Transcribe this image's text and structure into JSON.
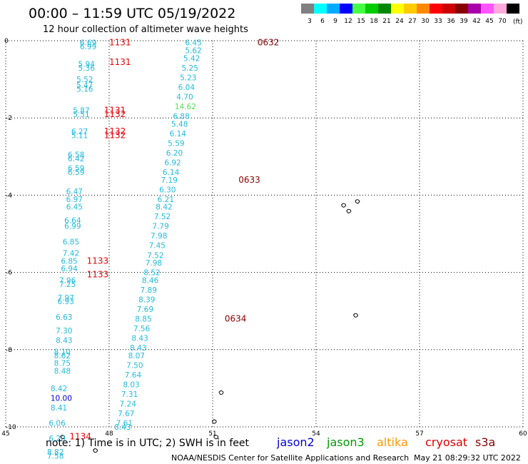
{
  "header": {
    "title": "00:00 – 11:59 UTC 05/19/2022",
    "subtitle": "12 hour collection of altimeter wave heights"
  },
  "legend": {
    "unit": "(ft)",
    "bins": [
      {
        "label": "3",
        "color": "#808080"
      },
      {
        "label": "6",
        "color": "#00ffff"
      },
      {
        "label": "9",
        "color": "#00aaff"
      },
      {
        "label": "12",
        "color": "#0000ff"
      },
      {
        "label": "15",
        "color": "#44ff44"
      },
      {
        "label": "18",
        "color": "#00cc00"
      },
      {
        "label": "21",
        "color": "#008800"
      },
      {
        "label": "24",
        "color": "#ffff00"
      },
      {
        "label": "27",
        "color": "#ffcc00"
      },
      {
        "label": "30",
        "color": "#ff8800"
      },
      {
        "label": "33",
        "color": "#ff0000"
      },
      {
        "label": "36",
        "color": "#cc0000"
      },
      {
        "label": "39",
        "color": "#880000"
      },
      {
        "label": "42",
        "color": "#aa00aa"
      },
      {
        "label": "45",
        "color": "#ff55ff"
      },
      {
        "label": "70",
        "color": "#ffaadd"
      },
      {
        "label": "",
        "color": "#000000"
      }
    ]
  },
  "footer": {
    "note": "note: 1) Time is in UTC; 2) SWH is in feet",
    "satellites": [
      {
        "name": "jason2",
        "color": "#0000dd"
      },
      {
        "name": "jason3",
        "color": "#009900"
      },
      {
        "name": "altika",
        "color": "#ff9900"
      },
      {
        "name": "cryosat",
        "color": "#dd0000"
      },
      {
        "name": "s3a",
        "color": "#880000"
      }
    ],
    "credit": "NOAA/NESDIS Center for Satellite Applications and Research",
    "generated": "May 21 08:29:32 UTC 2022"
  },
  "chart_data": {
    "type": "scatter",
    "title": "00:00 – 11:59 UTC 05/19/2022",
    "xlim": [
      45,
      60
    ],
    "ylim": [
      -10,
      0
    ],
    "x_ticks": [
      "45",
      "48",
      "51",
      "54",
      "57",
      "60"
    ],
    "y_ticks": [
      "0",
      "-2",
      "-4",
      "-6",
      "-8",
      "-10"
    ],
    "grid": true,
    "tracks": [
      {
        "color": "#22bbdd",
        "points": [
          {
            "x": 50.2,
            "y": -0.05,
            "v": "6.45"
          },
          {
            "x": 50.2,
            "y": -0.25,
            "v": "5.62"
          },
          {
            "x": 50.15,
            "y": -0.45,
            "v": "5.42"
          },
          {
            "x": 50.1,
            "y": -0.7,
            "v": "5.25"
          },
          {
            "x": 50.05,
            "y": -0.95,
            "v": "5.23"
          },
          {
            "x": 50.0,
            "y": -1.2,
            "v": "6.04"
          },
          {
            "x": 49.95,
            "y": -1.45,
            "v": "4.70"
          },
          {
            "x": 49.9,
            "y": -1.7,
            "v": "14.62",
            "color": "#55dd55"
          },
          {
            "x": 49.85,
            "y": -1.95,
            "v": "6.88"
          },
          {
            "x": 49.8,
            "y": -2.15,
            "v": "5.48"
          },
          {
            "x": 49.75,
            "y": -2.4,
            "v": "6.14"
          },
          {
            "x": 49.7,
            "y": -2.65,
            "v": "5.59"
          },
          {
            "x": 49.65,
            "y": -2.9,
            "v": "6.20"
          },
          {
            "x": 49.6,
            "y": -3.15,
            "v": "6.92"
          },
          {
            "x": 49.55,
            "y": -3.4,
            "v": "6.14"
          },
          {
            "x": 49.5,
            "y": -3.6,
            "v": "7.19"
          },
          {
            "x": 49.45,
            "y": -3.85,
            "v": "6.30"
          },
          {
            "x": 49.4,
            "y": -4.1,
            "v": "6.21"
          },
          {
            "x": 49.35,
            "y": -4.3,
            "v": "8.42"
          },
          {
            "x": 49.3,
            "y": -4.55,
            "v": "7.52"
          },
          {
            "x": 49.25,
            "y": -4.8,
            "v": "7.79"
          },
          {
            "x": 49.2,
            "y": -5.05,
            "v": "7.98"
          },
          {
            "x": 49.15,
            "y": -5.3,
            "v": "7.45"
          },
          {
            "x": 49.1,
            "y": -5.55,
            "v": "7.52"
          },
          {
            "x": 49.05,
            "y": -5.75,
            "v": "7.98"
          },
          {
            "x": 49.0,
            "y": -6.0,
            "v": "8.52"
          },
          {
            "x": 48.95,
            "y": -6.2,
            "v": "8.46"
          },
          {
            "x": 48.9,
            "y": -6.45,
            "v": "7.89"
          },
          {
            "x": 48.85,
            "y": -6.7,
            "v": "8.39"
          },
          {
            "x": 48.8,
            "y": -6.95,
            "v": "7.69"
          },
          {
            "x": 48.75,
            "y": -7.2,
            "v": "8.85"
          },
          {
            "x": 48.7,
            "y": -7.45,
            "v": "7.56"
          },
          {
            "x": 48.65,
            "y": -7.7,
            "v": "8.43"
          },
          {
            "x": 48.6,
            "y": -7.95,
            "v": "8.43"
          },
          {
            "x": 48.55,
            "y": -8.15,
            "v": "8.07"
          },
          {
            "x": 48.5,
            "y": -8.4,
            "v": "7.50"
          },
          {
            "x": 48.45,
            "y": -8.65,
            "v": "7.64"
          },
          {
            "x": 48.4,
            "y": -8.9,
            "v": "8.03"
          },
          {
            "x": 48.35,
            "y": -9.15,
            "v": "7.31"
          },
          {
            "x": 48.3,
            "y": -9.4,
            "v": "7.24"
          },
          {
            "x": 48.25,
            "y": -9.65,
            "v": "7.67"
          },
          {
            "x": 48.2,
            "y": -9.9,
            "v": "7.61"
          },
          {
            "x": 48.15,
            "y": -10.0,
            "v": "8.43"
          }
        ]
      },
      {
        "color": "#22bbdd",
        "points": [
          {
            "x": 47.15,
            "y": -0.05,
            "v": "6.69"
          },
          {
            "x": 47.15,
            "y": -0.15,
            "v": "6.99"
          },
          {
            "x": 47.1,
            "y": -0.6,
            "v": "5.94"
          },
          {
            "x": 47.1,
            "y": -0.7,
            "v": "5.36"
          },
          {
            "x": 47.05,
            "y": -1.0,
            "v": "5.52"
          },
          {
            "x": 47.05,
            "y": -1.15,
            "v": "5.47"
          },
          {
            "x": 47.05,
            "y": -1.25,
            "v": "5.16"
          },
          {
            "x": 46.95,
            "y": -1.8,
            "v": "5.87"
          },
          {
            "x": 46.95,
            "y": -1.9,
            "v": "5.51"
          },
          {
            "x": 46.9,
            "y": -2.35,
            "v": "6.27"
          },
          {
            "x": 46.9,
            "y": -2.45,
            "v": "5.11"
          },
          {
            "x": 46.8,
            "y": -2.95,
            "v": "6.58"
          },
          {
            "x": 46.8,
            "y": -3.05,
            "v": "6.42"
          },
          {
            "x": 46.8,
            "y": -3.3,
            "v": "6.59"
          },
          {
            "x": 46.8,
            "y": -3.4,
            "v": "6.59"
          },
          {
            "x": 46.75,
            "y": -3.9,
            "v": "6.47"
          },
          {
            "x": 46.75,
            "y": -4.1,
            "v": "6.97"
          },
          {
            "x": 46.75,
            "y": -4.3,
            "v": "6.45"
          },
          {
            "x": 46.7,
            "y": -4.65,
            "v": "6.64"
          },
          {
            "x": 46.7,
            "y": -4.8,
            "v": "6.99"
          },
          {
            "x": 46.65,
            "y": -5.2,
            "v": "6.85"
          },
          {
            "x": 46.65,
            "y": -5.5,
            "v": "7.42"
          },
          {
            "x": 46.6,
            "y": -5.7,
            "v": "6.85"
          },
          {
            "x": 46.6,
            "y": -5.9,
            "v": "6.94"
          },
          {
            "x": 46.55,
            "y": -6.2,
            "v": "7.96"
          },
          {
            "x": 46.55,
            "y": -6.3,
            "v": "7.25"
          },
          {
            "x": 46.5,
            "y": -6.65,
            "v": "7.97"
          },
          {
            "x": 46.5,
            "y": -6.75,
            "v": "6.93"
          },
          {
            "x": 46.45,
            "y": -7.15,
            "v": "6.63"
          },
          {
            "x": 46.45,
            "y": -7.5,
            "v": "7.30"
          },
          {
            "x": 46.45,
            "y": -7.75,
            "v": "8.43"
          },
          {
            "x": 46.4,
            "y": -8.05,
            "v": "8.10"
          },
          {
            "x": 46.4,
            "y": -8.15,
            "v": "8.62"
          },
          {
            "x": 46.4,
            "y": -8.35,
            "v": "8.75"
          },
          {
            "x": 46.4,
            "y": -8.55,
            "v": "8.48"
          },
          {
            "x": 46.3,
            "y": -9.0,
            "v": "8.42"
          },
          {
            "x": 46.3,
            "y": -9.25,
            "v": "10.00",
            "color": "#0000cc"
          },
          {
            "x": 46.3,
            "y": -9.5,
            "v": "8.41"
          },
          {
            "x": 46.25,
            "y": -9.9,
            "v": "6.06"
          },
          {
            "x": 46.25,
            "y": -10.3,
            "v": "6.20"
          },
          {
            "x": 46.2,
            "y": -10.65,
            "v": "8.82"
          },
          {
            "x": 46.2,
            "y": -10.75,
            "v": "7.58"
          }
        ]
      }
    ],
    "time_labels": [
      {
        "x": 48.0,
        "y": -0.05,
        "text": "1131",
        "color": "#ee0000"
      },
      {
        "x": 48.0,
        "y": -0.55,
        "text": "1131",
        "color": "#ee0000"
      },
      {
        "x": 47.85,
        "y": -1.8,
        "text": "1131",
        "color": "#ee0000"
      },
      {
        "x": 47.85,
        "y": -1.9,
        "text": "1132",
        "color": "#ee0000"
      },
      {
        "x": 47.85,
        "y": -2.35,
        "text": "1132",
        "color": "#ee0000"
      },
      {
        "x": 47.85,
        "y": -2.45,
        "text": "1132",
        "color": "#ee0000"
      },
      {
        "x": 47.35,
        "y": -5.7,
        "text": "1133",
        "color": "#ee0000"
      },
      {
        "x": 47.35,
        "y": -6.05,
        "text": "1133",
        "color": "#ee0000"
      },
      {
        "x": 46.85,
        "y": -10.25,
        "text": "1134",
        "color": "#ee0000"
      },
      {
        "x": 52.3,
        "y": -0.05,
        "text": "0632",
        "color": "#880000"
      },
      {
        "x": 51.75,
        "y": -3.6,
        "text": "0633",
        "color": "#880000"
      },
      {
        "x": 51.35,
        "y": -7.2,
        "text": "0634",
        "color": "#880000"
      }
    ],
    "land": [
      {
        "x": 54.8,
        "y": -4.25
      },
      {
        "x": 54.95,
        "y": -4.4
      },
      {
        "x": 55.2,
        "y": -4.15
      },
      {
        "x": 55.15,
        "y": -7.1
      },
      {
        "x": 51.05,
        "y": -9.85
      },
      {
        "x": 51.1,
        "y": -10.25
      },
      {
        "x": 51.25,
        "y": -9.1
      },
      {
        "x": 46.65,
        "y": -10.25
      },
      {
        "x": 47.6,
        "y": -10.6
      }
    ]
  }
}
